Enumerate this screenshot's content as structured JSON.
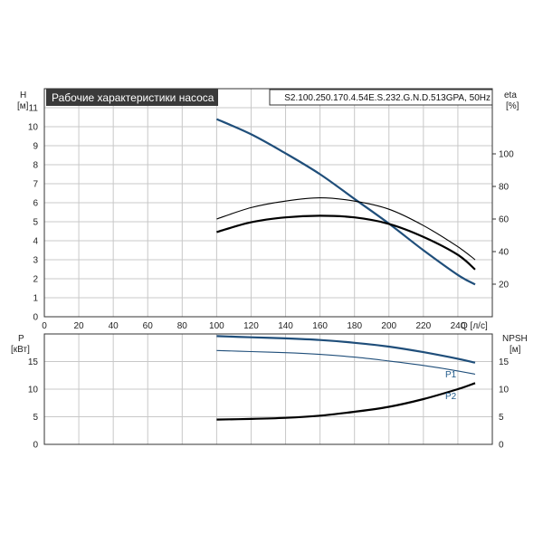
{
  "header": {
    "title": "Рабочие характеристики насоса",
    "model": "S2.100.250.170.4.54E.S.232.G.N.D.513GPA, 50Hz"
  },
  "chart_data": [
    {
      "type": "line",
      "xlabel": "Q [л/с]",
      "ylabel_left": [
        "H",
        "[м]"
      ],
      "ylabel_right": [
        "eta",
        "[%]"
      ],
      "xlim": [
        0,
        260
      ],
      "ylim_left": [
        0,
        12
      ],
      "ylim_right": [
        0,
        140
      ],
      "x_ticks": [
        "0",
        "20",
        "40",
        "60",
        "80",
        "100",
        "120",
        "140",
        "160",
        "180",
        "200",
        "220",
        "240"
      ],
      "y_ticks_left": [
        "0",
        "1",
        "2",
        "3",
        "4",
        "5",
        "6",
        "7",
        "8",
        "9",
        "10",
        "11"
      ],
      "y_ticks_right": [
        "20",
        "40",
        "60",
        "80",
        "100"
      ],
      "grid": true,
      "series": [
        {
          "axis": "left",
          "color": "#1f4e7a",
          "x": [
            100,
            120,
            140,
            160,
            180,
            200,
            220,
            240,
            250
          ],
          "y": [
            10.4,
            9.6,
            8.6,
            7.5,
            6.2,
            4.9,
            3.5,
            2.2,
            1.7
          ]
        },
        {
          "axis": "right",
          "color": "#000000",
          "x": [
            100,
            120,
            140,
            160,
            180,
            200,
            220,
            240,
            250
          ],
          "y": [
            60,
            67,
            71,
            73,
            71,
            66,
            56,
            43,
            35
          ]
        },
        {
          "axis": "right",
          "color": "#000000",
          "x": [
            100,
            120,
            140,
            160,
            180,
            200,
            220,
            240,
            250
          ],
          "y": [
            52,
            58,
            61,
            62,
            61,
            57,
            49,
            38,
            29
          ]
        }
      ]
    },
    {
      "type": "line",
      "xlim": [
        0,
        260
      ],
      "ylabel_left": [
        "P",
        "[кВт]"
      ],
      "ylabel_right": [
        "NPSH",
        "[м]"
      ],
      "ylim_left": [
        0,
        20
      ],
      "ylim_right": [
        0,
        20
      ],
      "y_ticks_left": [
        "0",
        "5",
        "10",
        "15"
      ],
      "y_ticks_right": [
        "0",
        "5",
        "10",
        "15"
      ],
      "grid": true,
      "series": [
        {
          "name": "P1",
          "axis": "left",
          "color": "#1f4e7a",
          "x": [
            100,
            120,
            140,
            160,
            180,
            200,
            220,
            240,
            250
          ],
          "y": [
            19.6,
            19.4,
            19.2,
            18.9,
            18.4,
            17.7,
            16.7,
            15.5,
            14.8
          ]
        },
        {
          "name": "P2",
          "axis": "left",
          "color": "#1f4e7a",
          "x": [
            100,
            120,
            140,
            160,
            180,
            200,
            220,
            240,
            250
          ],
          "y": [
            17.0,
            16.8,
            16.6,
            16.3,
            15.8,
            15.1,
            14.3,
            13.3,
            12.7
          ]
        },
        {
          "axis": "right",
          "color": "#000000",
          "x": [
            100,
            120,
            140,
            160,
            180,
            200,
            220,
            240,
            250
          ],
          "y": [
            4.5,
            4.6,
            4.8,
            5.2,
            5.9,
            6.8,
            8.2,
            10.0,
            11.1
          ]
        }
      ]
    }
  ]
}
